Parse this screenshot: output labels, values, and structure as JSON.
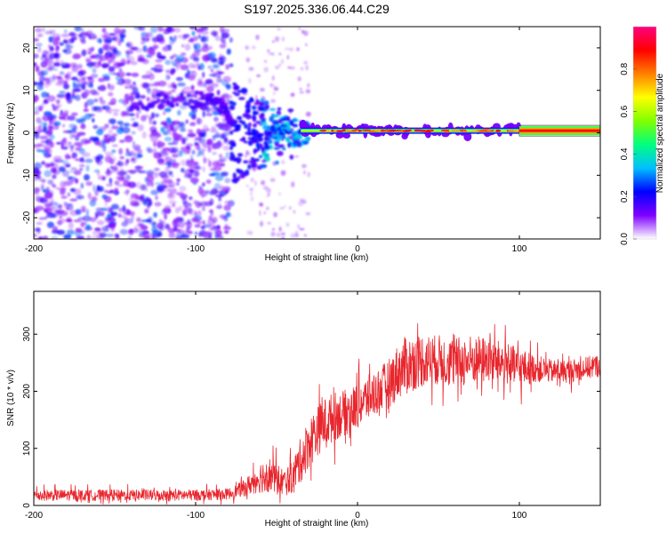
{
  "title": "S197.2025.336.06.44.C29",
  "chart_data": [
    {
      "type": "heatmap",
      "name": "spectrogram",
      "xlabel": "Height of straight line (km)",
      "ylabel": "Frequency (Hz)",
      "xlim": [
        -200,
        150
      ],
      "ylim": [
        -25,
        25
      ],
      "xticks": [
        -200,
        -100,
        0,
        100
      ],
      "yticks": [
        -20,
        -10,
        0,
        10,
        20
      ],
      "colorbar": {
        "label": "Normalized spectral amplitude",
        "range": [
          0,
          1
        ],
        "ticks": [
          "0.0",
          "0.2",
          "0.4",
          "0.6",
          "0.8"
        ],
        "tick_values": [
          0,
          0.2,
          0.4,
          0.6,
          0.8
        ],
        "colormap": [
          "#ffffff",
          "#7f00ff",
          "#0000ff",
          "#00bfff",
          "#00ff80",
          "#80ff00",
          "#ffff00",
          "#ff8000",
          "#ff0000",
          "#ff0080"
        ]
      },
      "features": {
        "noise_region_x": [
          -200,
          -78
        ],
        "carrier_frequency_hz": 0.5,
        "carrier_start_x": -35,
        "carrier_end_x": 150,
        "strong_line_start_x": 100,
        "arc_points": [
          [
            -140,
            6
          ],
          [
            -120,
            7
          ],
          [
            -100,
            8
          ],
          [
            -90,
            8
          ],
          [
            -82,
            6
          ],
          [
            -78,
            2
          ]
        ],
        "transition_x": [
          -78,
          -30
        ]
      }
    },
    {
      "type": "line",
      "name": "snr",
      "xlabel": "Height of straight line (km)",
      "ylabel": "SNR (10 * v/v)",
      "xlim": [
        -200,
        150
      ],
      "ylim": [
        0,
        375
      ],
      "xticks": [
        -200,
        -100,
        0,
        100
      ],
      "yticks": [
        0,
        100,
        200,
        300
      ],
      "color": "#e8262d",
      "series": [
        {
          "name": "SNR",
          "x": [
            -200,
            -180,
            -160,
            -140,
            -120,
            -100,
            -90,
            -80,
            -75,
            -70,
            -65,
            -60,
            -55,
            -50,
            -45,
            -40,
            -35,
            -30,
            -25,
            -20,
            -15,
            -10,
            -5,
            0,
            5,
            10,
            15,
            20,
            25,
            30,
            35,
            40,
            45,
            50,
            60,
            70,
            80,
            90,
            100,
            110,
            120,
            130,
            140,
            150
          ],
          "y": [
            18,
            18,
            18,
            18,
            18,
            18,
            19,
            20,
            25,
            30,
            40,
            50,
            55,
            45,
            40,
            50,
            80,
            110,
            130,
            145,
            155,
            160,
            165,
            175,
            185,
            195,
            205,
            215,
            235,
            245,
            250,
            255,
            255,
            255,
            250,
            255,
            255,
            250,
            240,
            240,
            235,
            235,
            240,
            245
          ],
          "noise": [
            12,
            12,
            12,
            12,
            12,
            12,
            12,
            12,
            14,
            18,
            25,
            35,
            40,
            35,
            30,
            35,
            50,
            55,
            55,
            55,
            55,
            50,
            50,
            50,
            50,
            50,
            50,
            55,
            60,
            65,
            60,
            60,
            55,
            55,
            55,
            55,
            50,
            45,
            45,
            30,
            25,
            25,
            25,
            25
          ]
        }
      ]
    }
  ]
}
